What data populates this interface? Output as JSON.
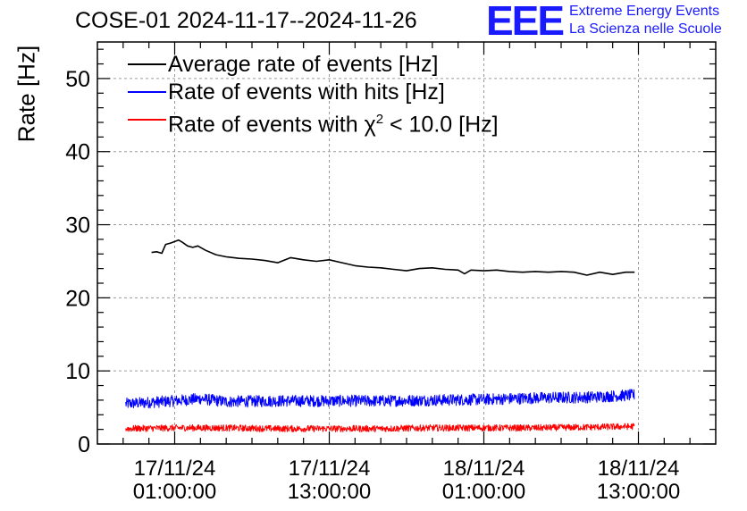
{
  "title": "COSE-01 2024-11-17--2024-11-26",
  "logo": {
    "mark": "EEE",
    "line1": "Extreme Energy Events",
    "line2": "La Scienza nelle Scuole",
    "color": "#1a1aff"
  },
  "chart_data": {
    "type": "line",
    "title": "COSE-01 2024-11-17--2024-11-26",
    "xlabel": "",
    "ylabel": "Rate [Hz]",
    "ylim": [
      0,
      55
    ],
    "xlim_hours": [
      -6,
      42
    ],
    "x_unit": "hours since 17/11/24 01:00:00",
    "yticks": [
      0,
      10,
      20,
      30,
      40,
      50
    ],
    "xticks": [
      {
        "hours": 0,
        "date": "17/11/24",
        "time": "01:00:00"
      },
      {
        "hours": 12,
        "date": "17/11/24",
        "time": "13:00:00"
      },
      {
        "hours": 24,
        "date": "18/11/24",
        "time": "01:00:00"
      },
      {
        "hours": 36,
        "date": "18/11/24",
        "time": "13:00:00"
      }
    ],
    "grid": true,
    "legend_position": "top-left",
    "series": [
      {
        "name": "Average rate of events [Hz]",
        "color": "#000000",
        "noisy": false,
        "x": [
          -1.8,
          -1.4,
          -1.0,
          -0.7,
          -0.3,
          0.0,
          0.3,
          0.6,
          1.0,
          1.4,
          1.8,
          2.4,
          3.2,
          4.0,
          5.0,
          6.0,
          7.0,
          8.0,
          9.0,
          10.0,
          11.0,
          12.0,
          13.0,
          14.0,
          15.0,
          16.0,
          17.0,
          18.0,
          19.0,
          20.0,
          21.0,
          22.0,
          22.5,
          23.0,
          24.0,
          25.0,
          26.0,
          27.0,
          28.0,
          29.0,
          30.0,
          31.0,
          32.0,
          33.0,
          34.0,
          35.0,
          35.7
        ],
        "values": [
          26.2,
          26.3,
          26.1,
          27.3,
          27.5,
          27.7,
          27.9,
          27.6,
          27.1,
          26.9,
          27.1,
          26.5,
          25.9,
          25.6,
          25.4,
          25.3,
          25.1,
          24.8,
          25.5,
          25.2,
          25.0,
          25.2,
          24.8,
          24.4,
          24.2,
          24.1,
          23.9,
          23.7,
          24.0,
          24.1,
          23.9,
          23.8,
          23.3,
          23.8,
          23.7,
          23.8,
          23.6,
          23.5,
          23.6,
          23.5,
          23.6,
          23.5,
          23.1,
          23.5,
          23.2,
          23.5,
          23.5
        ]
      },
      {
        "name": "Rate of events with hits [Hz]",
        "color": "#0000ff",
        "noisy": true,
        "noise_amplitude": 0.8,
        "x": [
          -3.8,
          0,
          2,
          4,
          8,
          12,
          16,
          20,
          24,
          28,
          32,
          35.7
        ],
        "values": [
          5.5,
          5.9,
          6.2,
          5.8,
          5.9,
          5.9,
          5.9,
          6.0,
          6.1,
          6.3,
          6.4,
          6.7
        ]
      },
      {
        "name": "Rate of events with χ2 < 10.0 [Hz]",
        "legend_prefix": "Rate of events with ",
        "legend_symbol": "χ",
        "legend_sup": "2",
        "legend_suffix": " < 10.0 [Hz]",
        "color": "#ff0000",
        "noisy": true,
        "noise_amplitude": 0.45,
        "x": [
          -3.8,
          0,
          4,
          8,
          12,
          16,
          20,
          24,
          28,
          32,
          35.7
        ],
        "values": [
          2.1,
          2.2,
          2.2,
          2.1,
          2.1,
          2.1,
          2.2,
          2.2,
          2.2,
          2.3,
          2.4
        ]
      }
    ]
  }
}
